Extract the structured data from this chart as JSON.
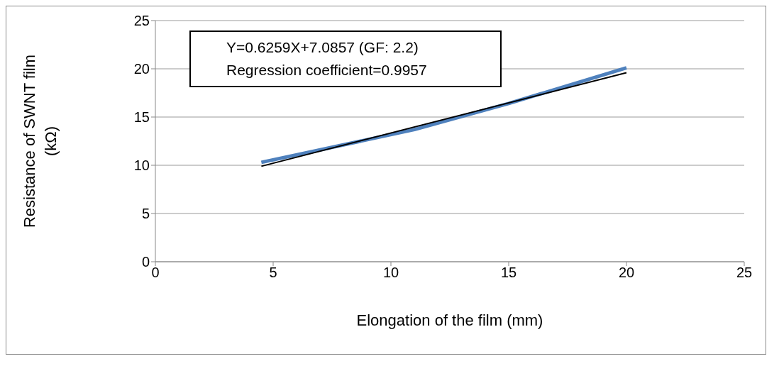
{
  "chart_data": {
    "type": "line",
    "xlabel": "Elongation of the film (mm)",
    "ylabel": "Resistance of SWNT film (kΩ)",
    "annotations": [
      "Y=0.6259X+7.0857 (GF: 2.2)",
      "Regression coefficient=0.9957"
    ],
    "series": [
      {
        "color": "#4f81bd",
        "x": [
          4.5,
          7,
          11,
          15,
          20
        ],
        "values": [
          10.3,
          11.6,
          13.7,
          16.4,
          20.1
        ]
      },
      {
        "type": "line",
        "color": "#000000",
        "x": [
          4.5,
          20
        ],
        "values": [
          9.9,
          19.6
        ]
      }
    ],
    "xlim": [
      0,
      25
    ],
    "xticks": [
      0,
      5,
      10,
      15,
      20,
      25
    ],
    "ylim": [
      0,
      25
    ],
    "yticks": [
      0,
      5,
      10,
      15,
      20,
      25
    ],
    "grid": "y",
    "legend": false,
    "marker": "none",
    "line_style": "solid"
  }
}
